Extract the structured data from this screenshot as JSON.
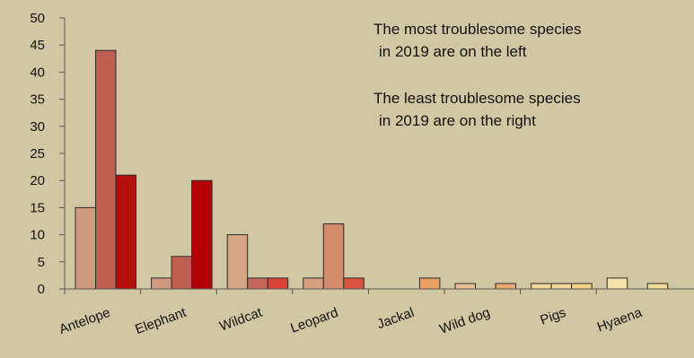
{
  "chart_data": {
    "type": "bar",
    "title": "",
    "xlabel": "",
    "ylabel": "",
    "ylim": [
      0,
      50
    ],
    "yticks": [
      0,
      5,
      10,
      15,
      20,
      25,
      30,
      35,
      40,
      45,
      50
    ],
    "grid": false,
    "categories": [
      "Antelope",
      "Elephant",
      "Wildcat",
      "Leopard",
      "Jackal",
      "Wild dog",
      "Pigs",
      "Hyaena"
    ],
    "bars": [
      [
        {
          "value": 15,
          "color": "#d09a80"
        },
        {
          "value": 44,
          "color": "#bd5f52"
        },
        {
          "value": 21,
          "color": "#b40f0a"
        }
      ],
      [
        {
          "value": 2,
          "color": "#d09a80"
        },
        {
          "value": 6,
          "color": "#bd5f52"
        },
        {
          "value": 20,
          "color": "#b40004"
        }
      ],
      [
        {
          "value": 10,
          "color": "#d4a684"
        },
        {
          "value": 2,
          "color": "#c5685a"
        },
        {
          "value": 2,
          "color": "#d8433a"
        }
      ],
      [
        {
          "value": 2,
          "color": "#d5a07e"
        },
        {
          "value": 12,
          "color": "#d48c6a"
        },
        {
          "value": 2,
          "color": "#d8533e"
        }
      ],
      [
        {
          "value": 0,
          "color": "#e6a870"
        },
        {
          "value": 0,
          "color": "#e6a870"
        },
        {
          "value": 2,
          "color": "#eaa062"
        }
      ],
      [
        {
          "value": 1,
          "color": "#e8c08e"
        },
        {
          "value": 0,
          "color": "#e8c08e"
        },
        {
          "value": 1,
          "color": "#ecaa70"
        }
      ],
      [
        {
          "value": 1,
          "color": "#f0d79a"
        },
        {
          "value": 1,
          "color": "#f0d79a"
        },
        {
          "value": 1,
          "color": "#f2d38a"
        }
      ],
      [
        {
          "value": 2,
          "color": "#f3e3a8"
        },
        {
          "value": 0,
          "color": "#f3e3a8"
        },
        {
          "value": 1,
          "color": "#f3dc94"
        }
      ]
    ],
    "annotations": [
      {
        "lines": [
          "The most troublesome species",
          "in 2019 are on the left"
        ]
      },
      {
        "lines": [
          "The least troublesome species",
          "in 2019 are on the right"
        ]
      }
    ]
  }
}
